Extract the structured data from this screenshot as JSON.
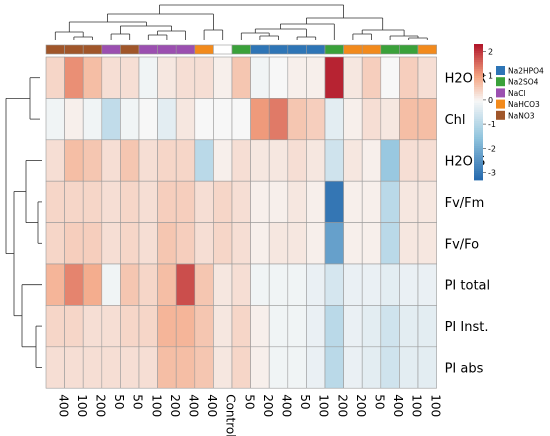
{
  "chart_data": {
    "type": "heatmap",
    "rows": [
      "H2O R",
      "Chl",
      "H2O S",
      "Fv/Fm",
      "Fv/Fo",
      "PI total",
      "PI Inst.",
      "PI abs"
    ],
    "columns": [
      "400",
      "100",
      "200",
      "50",
      "50",
      "100",
      "200",
      "400",
      "400",
      "Control",
      "50",
      "200",
      "400",
      "50",
      "100",
      "200",
      "200",
      "50",
      "400",
      "100",
      "100"
    ],
    "column_groups": [
      "NaNO3",
      "NaNO3",
      "NaNO3",
      "NaCl",
      "NaNO3",
      "NaCl",
      "NaCl",
      "NaCl",
      "NaHCO3",
      "",
      "Na2SO4",
      "Na2HPO4",
      "Na2HPO4",
      "Na2HPO4",
      "Na2HPO4",
      "Na2SO4",
      "NaHCO3",
      "NaHCO3",
      "Na2SO4",
      "Na2SO4",
      "NaHCO3"
    ],
    "values": [
      [
        0.4,
        1.2,
        0.7,
        0.3,
        0.3,
        -0.1,
        0.2,
        0.3,
        0.3,
        0.1,
        0.6,
        -0.1,
        0.0,
        0.1,
        0.1,
        2.2,
        0.2,
        0.5,
        0.0,
        0.5,
        0.3
      ],
      [
        -0.1,
        0.1,
        -0.1,
        -0.8,
        -0.1,
        0.0,
        -0.3,
        0.2,
        0.0,
        0.0,
        0.0,
        1.1,
        1.4,
        0.6,
        0.5,
        -0.3,
        0.1,
        0.3,
        0.2,
        0.7,
        0.7
      ],
      [
        0.3,
        0.7,
        0.6,
        0.3,
        0.6,
        0.3,
        0.4,
        0.4,
        -0.9,
        0.1,
        0.3,
        0.2,
        0.2,
        0.3,
        0.2,
        -0.6,
        0.2,
        0.1,
        -1.4,
        0.3,
        0.3
      ],
      [
        0.4,
        0.4,
        0.4,
        0.3,
        0.4,
        0.3,
        0.5,
        0.5,
        0.3,
        0.4,
        0.3,
        0.1,
        0.1,
        0.2,
        0.1,
        -3.0,
        0.1,
        0.1,
        -0.9,
        0.2,
        0.2
      ],
      [
        0.4,
        0.5,
        0.5,
        0.3,
        0.4,
        0.3,
        0.6,
        0.5,
        0.3,
        0.4,
        0.3,
        0.1,
        0.2,
        0.2,
        0.1,
        -2.2,
        0.1,
        0.1,
        -0.9,
        0.2,
        0.2
      ],
      [
        0.8,
        1.3,
        0.9,
        -0.1,
        0.6,
        0.4,
        0.7,
        1.8,
        0.6,
        0.2,
        0.3,
        -0.1,
        -0.1,
        -0.1,
        -0.2,
        -0.5,
        -0.2,
        -0.2,
        -0.3,
        -0.2,
        -0.2
      ],
      [
        0.4,
        0.4,
        0.3,
        0.3,
        0.4,
        0.4,
        0.8,
        0.8,
        0.6,
        0.2,
        0.4,
        0.1,
        -0.1,
        -0.1,
        -0.2,
        -0.9,
        -0.2,
        -0.3,
        -0.6,
        -0.3,
        -0.3
      ],
      [
        0.3,
        0.3,
        0.3,
        0.3,
        0.3,
        0.3,
        0.7,
        0.7,
        0.6,
        0.2,
        0.4,
        0.1,
        -0.1,
        -0.1,
        -0.2,
        -0.9,
        -0.2,
        -0.3,
        -0.6,
        -0.3,
        -0.3
      ]
    ],
    "color_scale": {
      "min": -3.3,
      "max": 2.3,
      "ticks": [
        2,
        1,
        0,
        -1,
        -2,
        -3
      ],
      "tick_labels": [
        "2",
        "1",
        "0",
        "-1",
        "-2",
        "-3"
      ],
      "stops": [
        {
          "value": -3.3,
          "color": "#2166ac"
        },
        {
          "value": -1.5,
          "color": "#92c5de"
        },
        {
          "value": 0,
          "color": "#f7f7f7"
        },
        {
          "value": 1.0,
          "color": "#f4a582"
        },
        {
          "value": 2.3,
          "color": "#b2182b"
        }
      ]
    },
    "legend": {
      "position": "right",
      "items": [
        {
          "label": "Na2HPO4",
          "color": "#2e75b6"
        },
        {
          "label": "Na2SO4",
          "color": "#3aa13a"
        },
        {
          "label": "NaCl",
          "color": "#9b4fb0"
        },
        {
          "label": "NaHCO3",
          "color": "#f28a1c"
        },
        {
          "label": "NaNO3",
          "color": "#a0562a"
        }
      ]
    },
    "column_dendrogram": true,
    "row_dendrogram": true,
    "grid": true
  }
}
